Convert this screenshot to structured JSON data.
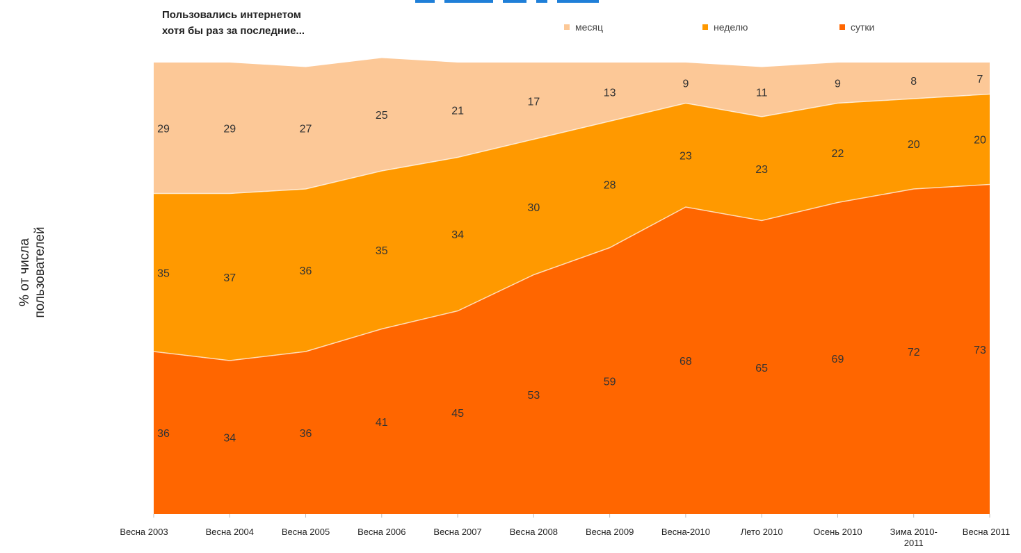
{
  "chart_data": {
    "type": "area",
    "stacked": true,
    "subtitle_lines": [
      "Пользовались интернетом",
      "хотя бы раз за последние..."
    ],
    "ylabel_lines": [
      "% от числа",
      "пользователей"
    ],
    "categories": [
      "Весна 2003",
      "Весна 2004",
      "Весна 2005",
      "Весна 2006",
      "Весна 2007",
      "Весна 2008",
      "Весна 2009",
      "Весна-2010",
      "Лето 2010",
      "Осень 2010",
      "Зима 2010-\n2011",
      "Весна 2011"
    ],
    "series": [
      {
        "name": "сутки",
        "color": "#ff6600",
        "values": [
          36,
          34,
          36,
          41,
          45,
          53,
          59,
          68,
          65,
          69,
          72,
          73
        ]
      },
      {
        "name": "неделю",
        "color": "#ff9900",
        "values": [
          35,
          37,
          36,
          35,
          34,
          30,
          28,
          23,
          23,
          22,
          20,
          20
        ]
      },
      {
        "name": "месяц",
        "color": "#fcc897",
        "values": [
          29,
          29,
          27,
          25,
          21,
          17,
          13,
          9,
          11,
          9,
          8,
          7
        ]
      }
    ],
    "legend_order": [
      "месяц",
      "неделю",
      "сутки"
    ],
    "legend_position": "top",
    "ylim": [
      0,
      100
    ],
    "grid": false
  }
}
